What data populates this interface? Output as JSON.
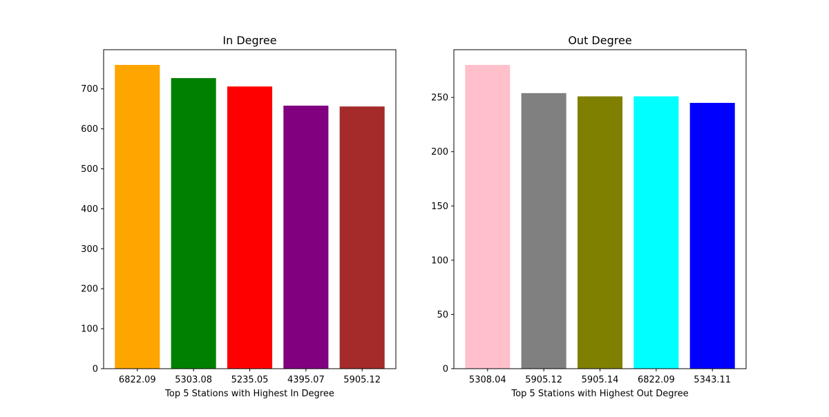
{
  "chart_data": [
    {
      "type": "bar",
      "title": "In Degree",
      "xlabel": "Top 5 Stations with Highest In Degree",
      "ylabel": "",
      "categories": [
        "6822.09",
        "5303.08",
        "5235.05",
        "4395.07",
        "5905.12"
      ],
      "values": [
        760,
        727,
        706,
        658,
        656
      ],
      "colors": [
        "#ffa500",
        "#008000",
        "#ff0000",
        "#800080",
        "#a52a2a"
      ],
      "ylim": [
        0,
        798
      ],
      "yticks": [
        0,
        100,
        200,
        300,
        400,
        500,
        600,
        700
      ],
      "grid": false
    },
    {
      "type": "bar",
      "title": "Out Degree",
      "xlabel": "Top 5 Stations with Highest Out Degree",
      "ylabel": "",
      "categories": [
        "5308.04",
        "5905.12",
        "5905.14",
        "6822.09",
        "5343.11"
      ],
      "values": [
        280,
        254,
        251,
        251,
        245
      ],
      "colors": [
        "#ffc0cb",
        "#808080",
        "#808000",
        "#00ffff",
        "#0000ff"
      ],
      "ylim": [
        0,
        294
      ],
      "yticks": [
        0,
        50,
        100,
        150,
        200,
        250
      ],
      "grid": false
    }
  ]
}
